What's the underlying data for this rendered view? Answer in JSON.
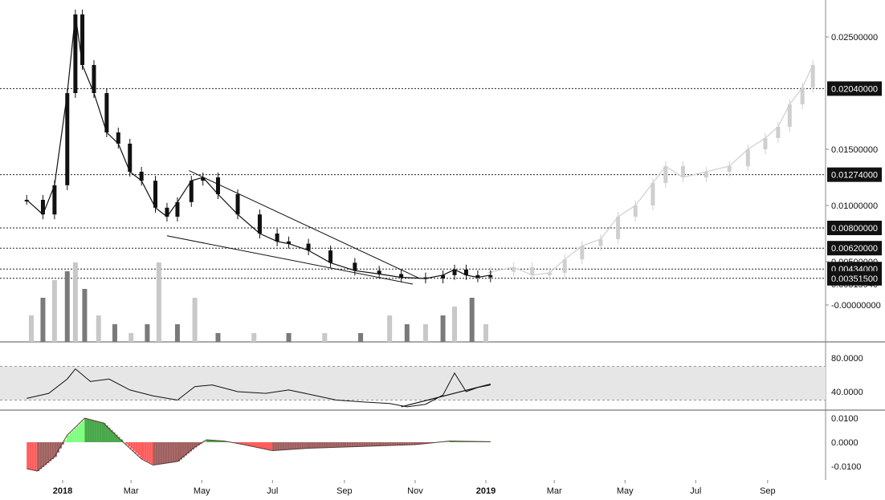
{
  "chart_data": {
    "type": "candlestick",
    "colors": {
      "candle": "#111111",
      "projection": "#cfcfcf",
      "volume_dark": "#7a7a7a",
      "volume_light": "#c8c8c8",
      "rsi_band": "#e6e6e6",
      "hist_up_light": "#7dff7d",
      "hist_up_dark": "#4aa84a",
      "hist_down_light": "#ff5c5c",
      "hist_down_dark": "#a06060",
      "label_bg": "#111111",
      "label_text": "#ffffff"
    },
    "x_axis": {
      "ticks": [
        {
          "label": "2018",
          "date": "2018-01-01",
          "bold": true
        },
        {
          "label": "Mar",
          "date": "2018-03-01",
          "bold": false
        },
        {
          "label": "May",
          "date": "2018-05-01",
          "bold": false
        },
        {
          "label": "Jul",
          "date": "2018-07-01",
          "bold": false
        },
        {
          "label": "Sep",
          "date": "2018-09-01",
          "bold": false
        },
        {
          "label": "Nov",
          "date": "2018-11-01",
          "bold": false
        },
        {
          "label": "2019",
          "date": "2019-01-01",
          "bold": true
        },
        {
          "label": "Mar",
          "date": "2019-03-01",
          "bold": false
        },
        {
          "label": "May",
          "date": "2019-05-01",
          "bold": false
        },
        {
          "label": "Jul",
          "date": "2019-07-01",
          "bold": false
        },
        {
          "label": "Sep",
          "date": "2019-09-01",
          "bold": false
        }
      ]
    },
    "price_axis": {
      "ticks": [
        "0.02500000",
        "0.01500000",
        "0.01000000",
        "0.00500000",
        "-0.00000000"
      ],
      "level_labels": [
        "0.02040000",
        "0.01274000",
        "0.00800000",
        "0.00620000",
        "0.00434000",
        "0.00351500"
      ],
      "last_value": "0.00315940",
      "levels": [
        0.0204,
        0.01274,
        0.008,
        0.0062,
        0.00434,
        0.003515
      ]
    },
    "price_series": [
      {
        "date": "2017-12-01",
        "close": 0.0105
      },
      {
        "date": "2017-12-15",
        "close": 0.0092
      },
      {
        "date": "2017-12-25",
        "close": 0.0118
      },
      {
        "date": "2018-01-05",
        "close": 0.02
      },
      {
        "date": "2018-01-12",
        "close": 0.027
      },
      {
        "date": "2018-01-18",
        "close": 0.0225
      },
      {
        "date": "2018-01-28",
        "close": 0.02
      },
      {
        "date": "2018-02-08",
        "close": 0.0165
      },
      {
        "date": "2018-02-18",
        "close": 0.0155
      },
      {
        "date": "2018-02-28",
        "close": 0.013
      },
      {
        "date": "2018-03-10",
        "close": 0.0122
      },
      {
        "date": "2018-03-22",
        "close": 0.0098
      },
      {
        "date": "2018-04-01",
        "close": 0.009
      },
      {
        "date": "2018-04-10",
        "close": 0.0103
      },
      {
        "date": "2018-04-22",
        "close": 0.0122
      },
      {
        "date": "2018-05-02",
        "close": 0.0125
      },
      {
        "date": "2018-05-15",
        "close": 0.011
      },
      {
        "date": "2018-06-01",
        "close": 0.0092
      },
      {
        "date": "2018-06-20",
        "close": 0.0075
      },
      {
        "date": "2018-07-05",
        "close": 0.0068
      },
      {
        "date": "2018-07-15",
        "close": 0.0066
      },
      {
        "date": "2018-08-01",
        "close": 0.006
      },
      {
        "date": "2018-08-20",
        "close": 0.0049
      },
      {
        "date": "2018-09-10",
        "close": 0.0042
      },
      {
        "date": "2018-10-01",
        "close": 0.0039
      },
      {
        "date": "2018-10-20",
        "close": 0.0036
      },
      {
        "date": "2018-11-10",
        "close": 0.0035
      },
      {
        "date": "2018-11-25",
        "close": 0.0038
      },
      {
        "date": "2018-12-05",
        "close": 0.0043
      },
      {
        "date": "2018-12-15",
        "close": 0.0038
      },
      {
        "date": "2018-12-25",
        "close": 0.0036
      },
      {
        "date": "2019-01-05",
        "close": 0.0038
      }
    ],
    "projection_series": [
      {
        "date": "2019-01-05",
        "close": 0.0041
      },
      {
        "date": "2019-01-25",
        "close": 0.0045
      },
      {
        "date": "2019-02-10",
        "close": 0.0038
      },
      {
        "date": "2019-02-25",
        "close": 0.004
      },
      {
        "date": "2019-03-10",
        "close": 0.0052
      },
      {
        "date": "2019-03-25",
        "close": 0.0064
      },
      {
        "date": "2019-04-10",
        "close": 0.007
      },
      {
        "date": "2019-04-25",
        "close": 0.009
      },
      {
        "date": "2019-05-10",
        "close": 0.01
      },
      {
        "date": "2019-05-25",
        "close": 0.012
      },
      {
        "date": "2019-06-05",
        "close": 0.0135
      },
      {
        "date": "2019-06-20",
        "close": 0.0125
      },
      {
        "date": "2019-07-10",
        "close": 0.013
      },
      {
        "date": "2019-07-30",
        "close": 0.0135
      },
      {
        "date": "2019-08-15",
        "close": 0.015
      },
      {
        "date": "2019-08-30",
        "close": 0.016
      },
      {
        "date": "2019-09-10",
        "close": 0.017
      },
      {
        "date": "2019-09-20",
        "close": 0.019
      },
      {
        "date": "2019-10-01",
        "close": 0.0205
      },
      {
        "date": "2019-10-10",
        "close": 0.0225
      }
    ],
    "volume": [
      {
        "date": "2017-12-05",
        "value": 3
      },
      {
        "date": "2017-12-15",
        "value": 5
      },
      {
        "date": "2017-12-25",
        "value": 7
      },
      {
        "date": "2018-01-05",
        "value": 8
      },
      {
        "date": "2018-01-12",
        "value": 9
      },
      {
        "date": "2018-01-20",
        "value": 6
      },
      {
        "date": "2018-02-01",
        "value": 3
      },
      {
        "date": "2018-02-15",
        "value": 2
      },
      {
        "date": "2018-03-01",
        "value": 1
      },
      {
        "date": "2018-03-15",
        "value": 2
      },
      {
        "date": "2018-03-25",
        "value": 9
      },
      {
        "date": "2018-04-10",
        "value": 2
      },
      {
        "date": "2018-04-25",
        "value": 5
      },
      {
        "date": "2018-05-15",
        "value": 1
      },
      {
        "date": "2018-06-15",
        "value": 1
      },
      {
        "date": "2018-07-15",
        "value": 1
      },
      {
        "date": "2018-08-15",
        "value": 1
      },
      {
        "date": "2018-09-15",
        "value": 1
      },
      {
        "date": "2018-10-10",
        "value": 3
      },
      {
        "date": "2018-10-25",
        "value": 2
      },
      {
        "date": "2018-11-10",
        "value": 2
      },
      {
        "date": "2018-11-25",
        "value": 3
      },
      {
        "date": "2018-12-05",
        "value": 4
      },
      {
        "date": "2018-12-20",
        "value": 5
      },
      {
        "date": "2019-01-01",
        "value": 2
      }
    ],
    "rsi": {
      "axis_ticks": [
        "80.0000",
        "40.0000"
      ],
      "band": [
        30,
        70
      ],
      "series": [
        {
          "date": "2017-12-01",
          "value": 32
        },
        {
          "date": "2017-12-20",
          "value": 38
        },
        {
          "date": "2018-01-05",
          "value": 55
        },
        {
          "date": "2018-01-12",
          "value": 67
        },
        {
          "date": "2018-01-25",
          "value": 52
        },
        {
          "date": "2018-02-10",
          "value": 55
        },
        {
          "date": "2018-02-28",
          "value": 42
        },
        {
          "date": "2018-03-20",
          "value": 35
        },
        {
          "date": "2018-04-10",
          "value": 30
        },
        {
          "date": "2018-04-25",
          "value": 46
        },
        {
          "date": "2018-05-10",
          "value": 48
        },
        {
          "date": "2018-06-01",
          "value": 40
        },
        {
          "date": "2018-06-25",
          "value": 38
        },
        {
          "date": "2018-07-15",
          "value": 42
        },
        {
          "date": "2018-08-05",
          "value": 36
        },
        {
          "date": "2018-08-25",
          "value": 30
        },
        {
          "date": "2018-09-15",
          "value": 28
        },
        {
          "date": "2018-10-10",
          "value": 26
        },
        {
          "date": "2018-10-25",
          "value": 22
        },
        {
          "date": "2018-11-10",
          "value": 25
        },
        {
          "date": "2018-11-25",
          "value": 36
        },
        {
          "date": "2018-12-05",
          "value": 62
        },
        {
          "date": "2018-12-15",
          "value": 40
        },
        {
          "date": "2018-12-25",
          "value": 45
        },
        {
          "date": "2019-01-05",
          "value": 48
        }
      ],
      "trendline": [
        {
          "date": "2018-10-20",
          "value": 22
        },
        {
          "date": "2019-01-05",
          "value": 49
        }
      ]
    },
    "oscillator": {
      "axis_ticks": [
        "0.0100",
        "0.0000",
        "-0.0100"
      ],
      "series": [
        {
          "date": "2017-12-01",
          "value": -0.011
        },
        {
          "date": "2017-12-10",
          "value": -0.012
        },
        {
          "date": "2017-12-25",
          "value": -0.006
        },
        {
          "date": "2018-01-05",
          "value": 0.003
        },
        {
          "date": "2018-01-20",
          "value": 0.01
        },
        {
          "date": "2018-02-05",
          "value": 0.008
        },
        {
          "date": "2018-02-20",
          "value": 0.001
        },
        {
          "date": "2018-03-10",
          "value": -0.007
        },
        {
          "date": "2018-03-20",
          "value": -0.0095
        },
        {
          "date": "2018-04-10",
          "value": -0.008
        },
        {
          "date": "2018-04-25",
          "value": -0.002
        },
        {
          "date": "2018-05-05",
          "value": 0.001
        },
        {
          "date": "2018-05-20",
          "value": 0.0005
        },
        {
          "date": "2018-06-01",
          "value": -0.0005
        },
        {
          "date": "2018-07-01",
          "value": -0.0035
        },
        {
          "date": "2018-08-01",
          "value": -0.0025
        },
        {
          "date": "2018-09-01",
          "value": -0.002
        },
        {
          "date": "2018-10-01",
          "value": -0.0015
        },
        {
          "date": "2018-11-01",
          "value": -0.001
        },
        {
          "date": "2018-12-01",
          "value": 0.0005
        },
        {
          "date": "2019-01-05",
          "value": 0.0002
        }
      ]
    }
  }
}
